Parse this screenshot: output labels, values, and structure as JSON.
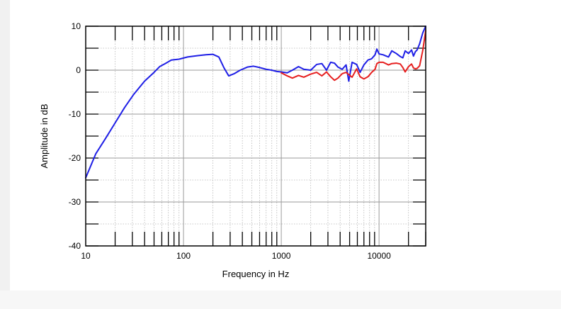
{
  "chart_data": {
    "type": "line",
    "xscale": "log",
    "xlabel": "Frequency in Hz",
    "ylabel": "Amplitude in dB",
    "xlim": [
      10,
      30000
    ],
    "ylim": [
      -40,
      10
    ],
    "x_ticks": [
      10,
      100,
      1000,
      10000
    ],
    "x_tick_labels": [
      "10",
      "100",
      "1000",
      "10000"
    ],
    "y_ticks": [
      10,
      0,
      -10,
      -20,
      -30,
      -40
    ],
    "y_tick_labels": [
      "10",
      "0",
      "-10",
      "-20",
      "-30",
      "-40"
    ],
    "grid": true,
    "colors": {
      "blue": "#1f1fe6",
      "red": "#e61f1f"
    },
    "series": [
      {
        "color": "#1f1fe6",
        "points": [
          [
            10,
            -24.5
          ],
          [
            12.7,
            -19
          ],
          [
            16,
            -15.5
          ],
          [
            20,
            -12
          ],
          [
            25,
            -8.5
          ],
          [
            31,
            -5.5
          ],
          [
            40,
            -2.5
          ],
          [
            50,
            -0.5
          ],
          [
            57,
            0.8
          ],
          [
            65,
            1.5
          ],
          [
            75,
            2.3
          ],
          [
            90,
            2.5
          ],
          [
            110,
            3
          ],
          [
            140,
            3.3
          ],
          [
            170,
            3.5
          ],
          [
            200,
            3.6
          ],
          [
            230,
            3
          ],
          [
            260,
            0.5
          ],
          [
            290,
            -1.3
          ],
          [
            330,
            -0.8
          ],
          [
            380,
            0
          ],
          [
            450,
            0.7
          ],
          [
            520,
            0.9
          ],
          [
            600,
            0.6
          ],
          [
            700,
            0.2
          ],
          [
            800,
            0
          ],
          [
            900,
            -0.3
          ],
          [
            1000,
            -0.4
          ],
          [
            1150,
            -0.6
          ],
          [
            1300,
            0
          ],
          [
            1500,
            0.8
          ],
          [
            1700,
            0.2
          ],
          [
            2000,
            0
          ],
          [
            2300,
            1.3
          ],
          [
            2600,
            1.5
          ],
          [
            2900,
            0
          ],
          [
            3200,
            1.8
          ],
          [
            3500,
            1.6
          ],
          [
            3800,
            0.7
          ],
          [
            4200,
            0.2
          ],
          [
            4600,
            1.2
          ],
          [
            4900,
            -2.5
          ],
          [
            5300,
            1.8
          ],
          [
            5900,
            1.3
          ],
          [
            6400,
            -0.5
          ],
          [
            7000,
            1.2
          ],
          [
            7700,
            2.3
          ],
          [
            8400,
            2.6
          ],
          [
            9100,
            3.5
          ],
          [
            9500,
            4.8
          ],
          [
            10000,
            3.7
          ],
          [
            11000,
            3.5
          ],
          [
            12500,
            3
          ],
          [
            13500,
            4.4
          ],
          [
            15000,
            3.8
          ],
          [
            16500,
            3.1
          ],
          [
            17500,
            2.8
          ],
          [
            18500,
            4.4
          ],
          [
            20000,
            3.8
          ],
          [
            21500,
            4.6
          ],
          [
            22500,
            3.2
          ],
          [
            23500,
            4.2
          ],
          [
            24500,
            4.6
          ],
          [
            26000,
            6
          ],
          [
            28000,
            8.5
          ],
          [
            30000,
            10
          ]
        ]
      },
      {
        "color": "#e61f1f",
        "points": [
          [
            1000,
            -0.6
          ],
          [
            1150,
            -1.3
          ],
          [
            1300,
            -1.8
          ],
          [
            1500,
            -1.2
          ],
          [
            1700,
            -1.6
          ],
          [
            2000,
            -0.9
          ],
          [
            2300,
            -0.5
          ],
          [
            2600,
            -1.3
          ],
          [
            2900,
            -0.4
          ],
          [
            3200,
            -1.5
          ],
          [
            3500,
            -2.3
          ],
          [
            3800,
            -1.8
          ],
          [
            4200,
            -0.8
          ],
          [
            4600,
            -0.5
          ],
          [
            4900,
            -1
          ],
          [
            5300,
            -1.6
          ],
          [
            5900,
            0.3
          ],
          [
            6400,
            -1.5
          ],
          [
            7000,
            -2
          ],
          [
            7700,
            -1.5
          ],
          [
            8400,
            -0.5
          ],
          [
            9100,
            0.2
          ],
          [
            9500,
            1.5
          ],
          [
            10000,
            1.8
          ],
          [
            11000,
            1.8
          ],
          [
            12500,
            1.2
          ],
          [
            13500,
            1.5
          ],
          [
            15000,
            1.6
          ],
          [
            16500,
            1.4
          ],
          [
            17500,
            0.6
          ],
          [
            18500,
            -0.4
          ],
          [
            20000,
            0.8
          ],
          [
            21500,
            1.4
          ],
          [
            22500,
            0.5
          ],
          [
            23500,
            0.3
          ],
          [
            24500,
            0.4
          ],
          [
            26000,
            1
          ],
          [
            28000,
            4.5
          ],
          [
            30000,
            9
          ]
        ]
      }
    ]
  }
}
